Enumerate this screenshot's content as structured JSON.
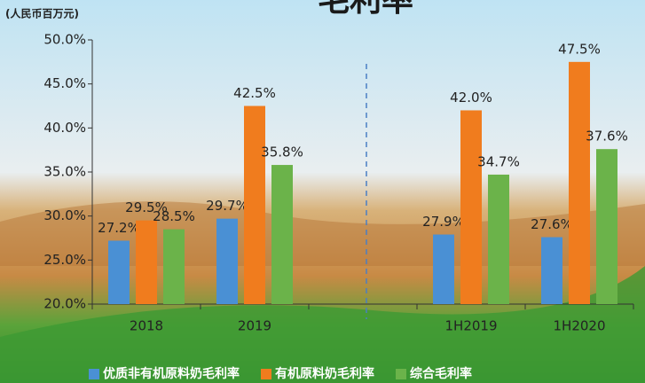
{
  "chart_data": {
    "type": "bar",
    "title": "毛利率",
    "subtitle": "(人民币百万元)",
    "categories": [
      "2018",
      "2019",
      null,
      "1H2019",
      "1H2020"
    ],
    "series": [
      {
        "name": "优质非有机原料奶毛利率",
        "color": "#4a90d4",
        "values": [
          27.2,
          29.7,
          null,
          27.9,
          27.6
        ],
        "value_labels": [
          "27.2%",
          "29.7%",
          null,
          "27.9%",
          "27.6%"
        ]
      },
      {
        "name": "有机原料奶毛利率",
        "color": "#f07c1e",
        "values": [
          29.5,
          42.5,
          null,
          42.0,
          47.5
        ],
        "value_labels": [
          "29.5%",
          "42.5%",
          null,
          "42.0%",
          "47.5%"
        ]
      },
      {
        "name": "综合毛利率",
        "color": "#6bb34a",
        "values": [
          28.5,
          35.8,
          null,
          34.7,
          37.6
        ],
        "value_labels": [
          "28.5%",
          "35.8%",
          null,
          "34.7%",
          "37.6%"
        ]
      }
    ],
    "ylim": [
      20,
      50
    ],
    "yticks": [
      {
        "value": 20,
        "label": "20.0%"
      },
      {
        "value": 25,
        "label": "25.0%"
      },
      {
        "value": 30,
        "label": "30.0%"
      },
      {
        "value": 35,
        "label": "35.0%"
      },
      {
        "value": 40,
        "label": "40.0%"
      },
      {
        "value": 45,
        "label": "45.0%"
      },
      {
        "value": 50,
        "label": "50.0%"
      }
    ],
    "grid": false,
    "legend": "bottom"
  }
}
